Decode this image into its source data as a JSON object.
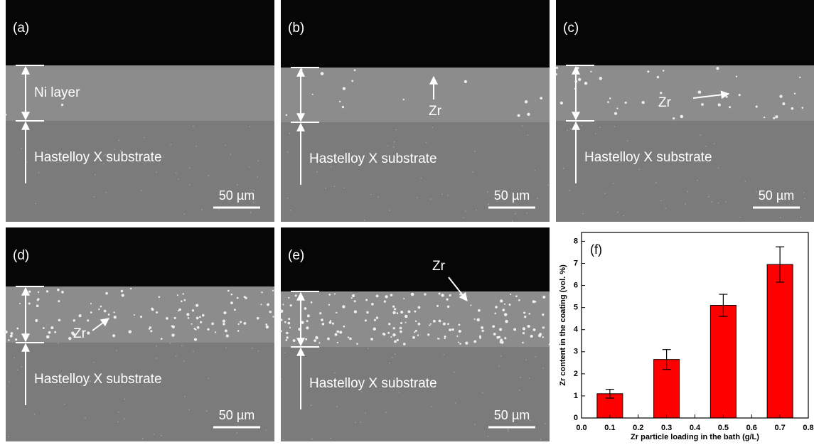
{
  "panels": [
    {
      "label": "(a)",
      "layer_text": "Ni layer",
      "substrate_text": "Hastelloy X substrate",
      "scale_text": "50 µm"
    },
    {
      "label": "(b)",
      "zr_text": "Zr",
      "substrate_text": "Hastelloy X substrate",
      "scale_text": "50 µm"
    },
    {
      "label": "(c)",
      "zr_text": "Zr",
      "substrate_text": "Hastelloy X substrate",
      "scale_text": "50 µm"
    },
    {
      "label": "(d)",
      "zr_text": "Zr",
      "substrate_text": "Hastelloy X substrate",
      "scale_text": "50 µm"
    },
    {
      "label": "(e)",
      "zr_text": "Zr",
      "substrate_text": "Hastelloy X substrate",
      "scale_text": "50 µm"
    }
  ],
  "chart_data": {
    "type": "bar",
    "panel_label": "(f)",
    "x": [
      0.1,
      0.3,
      0.5,
      0.7
    ],
    "values": [
      1.1,
      2.65,
      5.1,
      6.95
    ],
    "errors": [
      0.2,
      0.45,
      0.5,
      0.8
    ],
    "color": "#ff0000",
    "x_label": "Zr particle loading in the bath (g/L)",
    "y_label": "Zr content in the coating (vol. %)",
    "xlim": [
      0,
      0.8
    ],
    "ylim": [
      0,
      8.4
    ],
    "xticks": [
      {
        "value": 0,
        "label": "0.0"
      },
      0.1,
      0.2,
      0.3,
      0.4,
      0.5,
      0.6,
      0.7,
      0.8
    ],
    "yticks": [
      0,
      1,
      2,
      3,
      4,
      5,
      6,
      7,
      8
    ]
  }
}
